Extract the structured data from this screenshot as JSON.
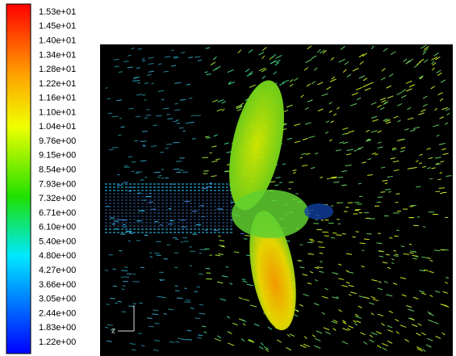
{
  "colorbar": {
    "labels": [
      "1.53e+01",
      "1.45e+01",
      "1.40e+01",
      "1.34e+01",
      "1.28e+01",
      "1.22e+01",
      "1.16e+01",
      "1.10e+01",
      "1.04e+01",
      "9.76e+00",
      "9.15e+00",
      "8.54e+00",
      "7.93e+00",
      "7.32e+00",
      "6.71e+00",
      "6.10e+00",
      "5.40e+00",
      "4.80e+00",
      "4.27e+00",
      "3.66e+00",
      "3.05e+00",
      "2.44e+00",
      "1.83e+00",
      "1.22e+00"
    ]
  },
  "axis_label": "z"
}
